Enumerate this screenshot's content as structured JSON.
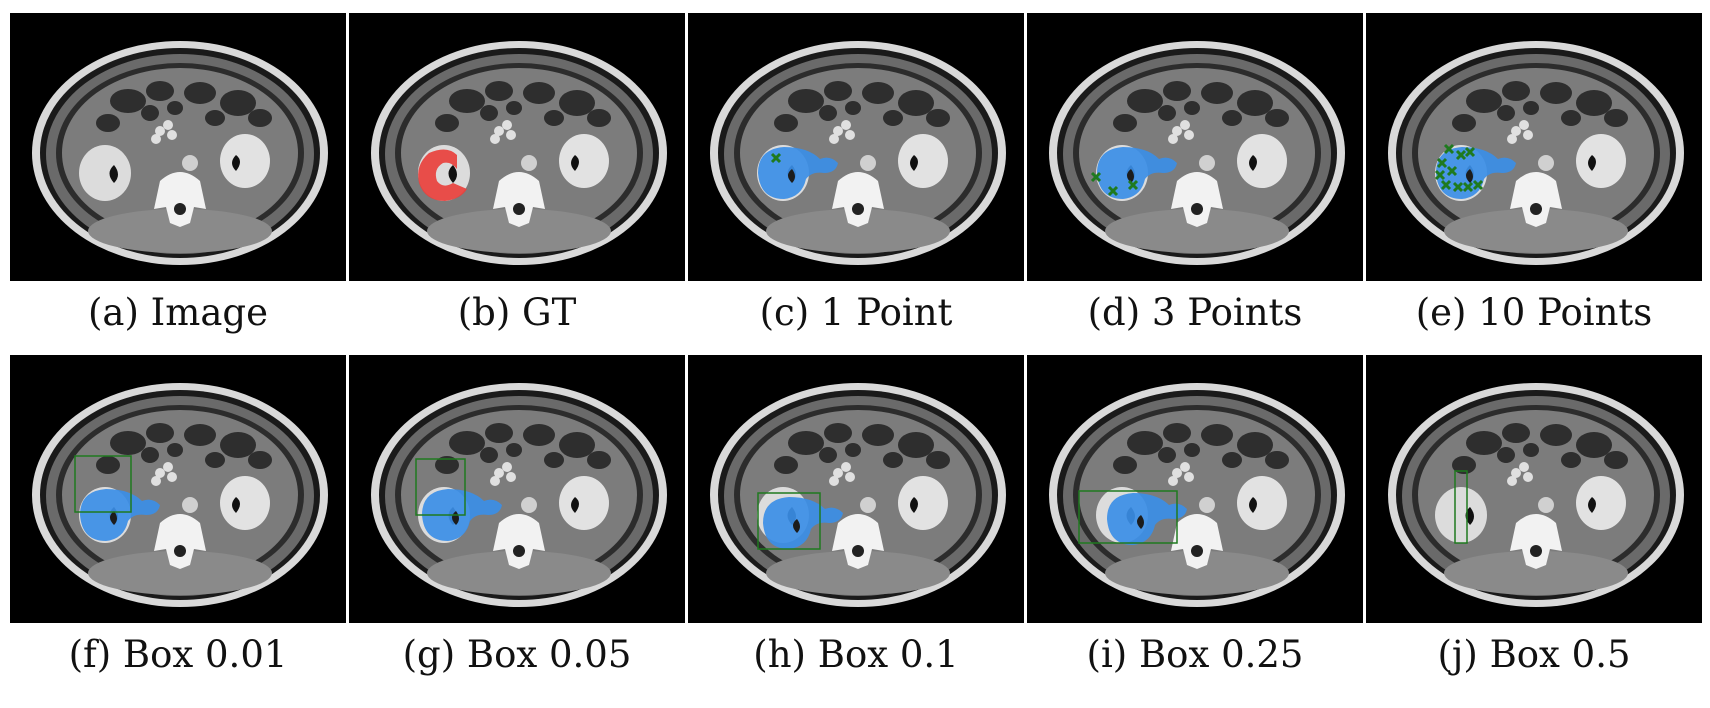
{
  "panels": [
    {
      "caption": "(a) Image",
      "gt": false,
      "mask": false,
      "points": 0,
      "box": null
    },
    {
      "caption": "(b) GT",
      "gt": true,
      "mask": false,
      "points": 0,
      "box": null
    },
    {
      "caption": "(c) 1 Point",
      "gt": false,
      "mask": true,
      "points": 1,
      "box": null
    },
    {
      "caption": "(d) 3 Points",
      "gt": false,
      "mask": true,
      "points": 3,
      "box": null
    },
    {
      "caption": "(e) 10 Points",
      "gt": false,
      "mask": true,
      "points": 10,
      "box": null
    },
    {
      "caption": "(f) Box 0.01",
      "gt": false,
      "mask": true,
      "points": 0,
      "box": 0.01
    },
    {
      "caption": "(g) Box 0.05",
      "gt": false,
      "mask": true,
      "points": 0,
      "box": 0.05
    },
    {
      "caption": "(h) Box 0.1",
      "gt": false,
      "mask": true,
      "points": 0,
      "box": 0.1
    },
    {
      "caption": "(i) Box 0.25",
      "gt": false,
      "mask": true,
      "points": 0,
      "box": 0.25
    },
    {
      "caption": "(j) Box 0.5",
      "gt": false,
      "mask": false,
      "points": 0,
      "box": 0.5
    }
  ],
  "colors": {
    "gt_mask": "#e8403c",
    "pred_mask": "#3b8ee6",
    "prompt": "#1f7a1f",
    "background": "#000000"
  }
}
